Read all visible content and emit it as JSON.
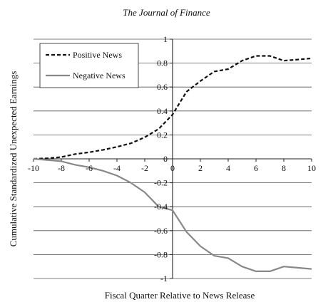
{
  "header": {
    "journal": "The Journal of Finance"
  },
  "chart_data": {
    "type": "line",
    "title": "",
    "xlabel": "Fiscal Quarter Relative to News Release",
    "ylabel": "Cumulative Standardized Unexpected Earnings",
    "xlim": [
      -10,
      10
    ],
    "ylim": [
      -1,
      1
    ],
    "xticks": [
      -10,
      -8,
      -6,
      -4,
      -2,
      0,
      2,
      4,
      6,
      8,
      10
    ],
    "yticks": [
      -1,
      -0.8,
      -0.6,
      -0.4,
      -0.2,
      0,
      0.2,
      0.4,
      0.6,
      0.8,
      1
    ],
    "xtick_labels": [
      "-10",
      "-8",
      "-6",
      "-4",
      "-2",
      "0",
      "2",
      "4",
      "6",
      "8",
      "10"
    ],
    "ytick_labels": [
      "-1",
      "-0.8",
      "-0.6",
      "-0.4",
      "-0.2",
      "0",
      "0.2",
      "0.4",
      "0.6",
      "0.8",
      "1"
    ],
    "grid": "horizontal",
    "legend": "top-left",
    "x": [
      -10,
      -9,
      -8,
      -7,
      -6,
      -5,
      -4,
      -3,
      -2,
      -1,
      0,
      1,
      2,
      3,
      4,
      5,
      6,
      7,
      8,
      9,
      10
    ],
    "series": [
      {
        "name": "Positive News",
        "style": "dashed",
        "color": "#111111",
        "values": [
          0,
          0.005,
          0.015,
          0.04,
          0.055,
          0.075,
          0.1,
          0.13,
          0.18,
          0.25,
          0.37,
          0.56,
          0.65,
          0.73,
          0.75,
          0.82,
          0.86,
          0.86,
          0.82,
          0.83,
          0.84
        ]
      },
      {
        "name": "Negative News",
        "style": "solid",
        "color": "#888888",
        "values": [
          0,
          -0.01,
          -0.02,
          -0.05,
          -0.07,
          -0.1,
          -0.14,
          -0.2,
          -0.28,
          -0.4,
          -0.43,
          -0.61,
          -0.73,
          -0.81,
          -0.83,
          -0.9,
          -0.94,
          -0.94,
          -0.9,
          -0.91,
          -0.92
        ]
      }
    ]
  }
}
